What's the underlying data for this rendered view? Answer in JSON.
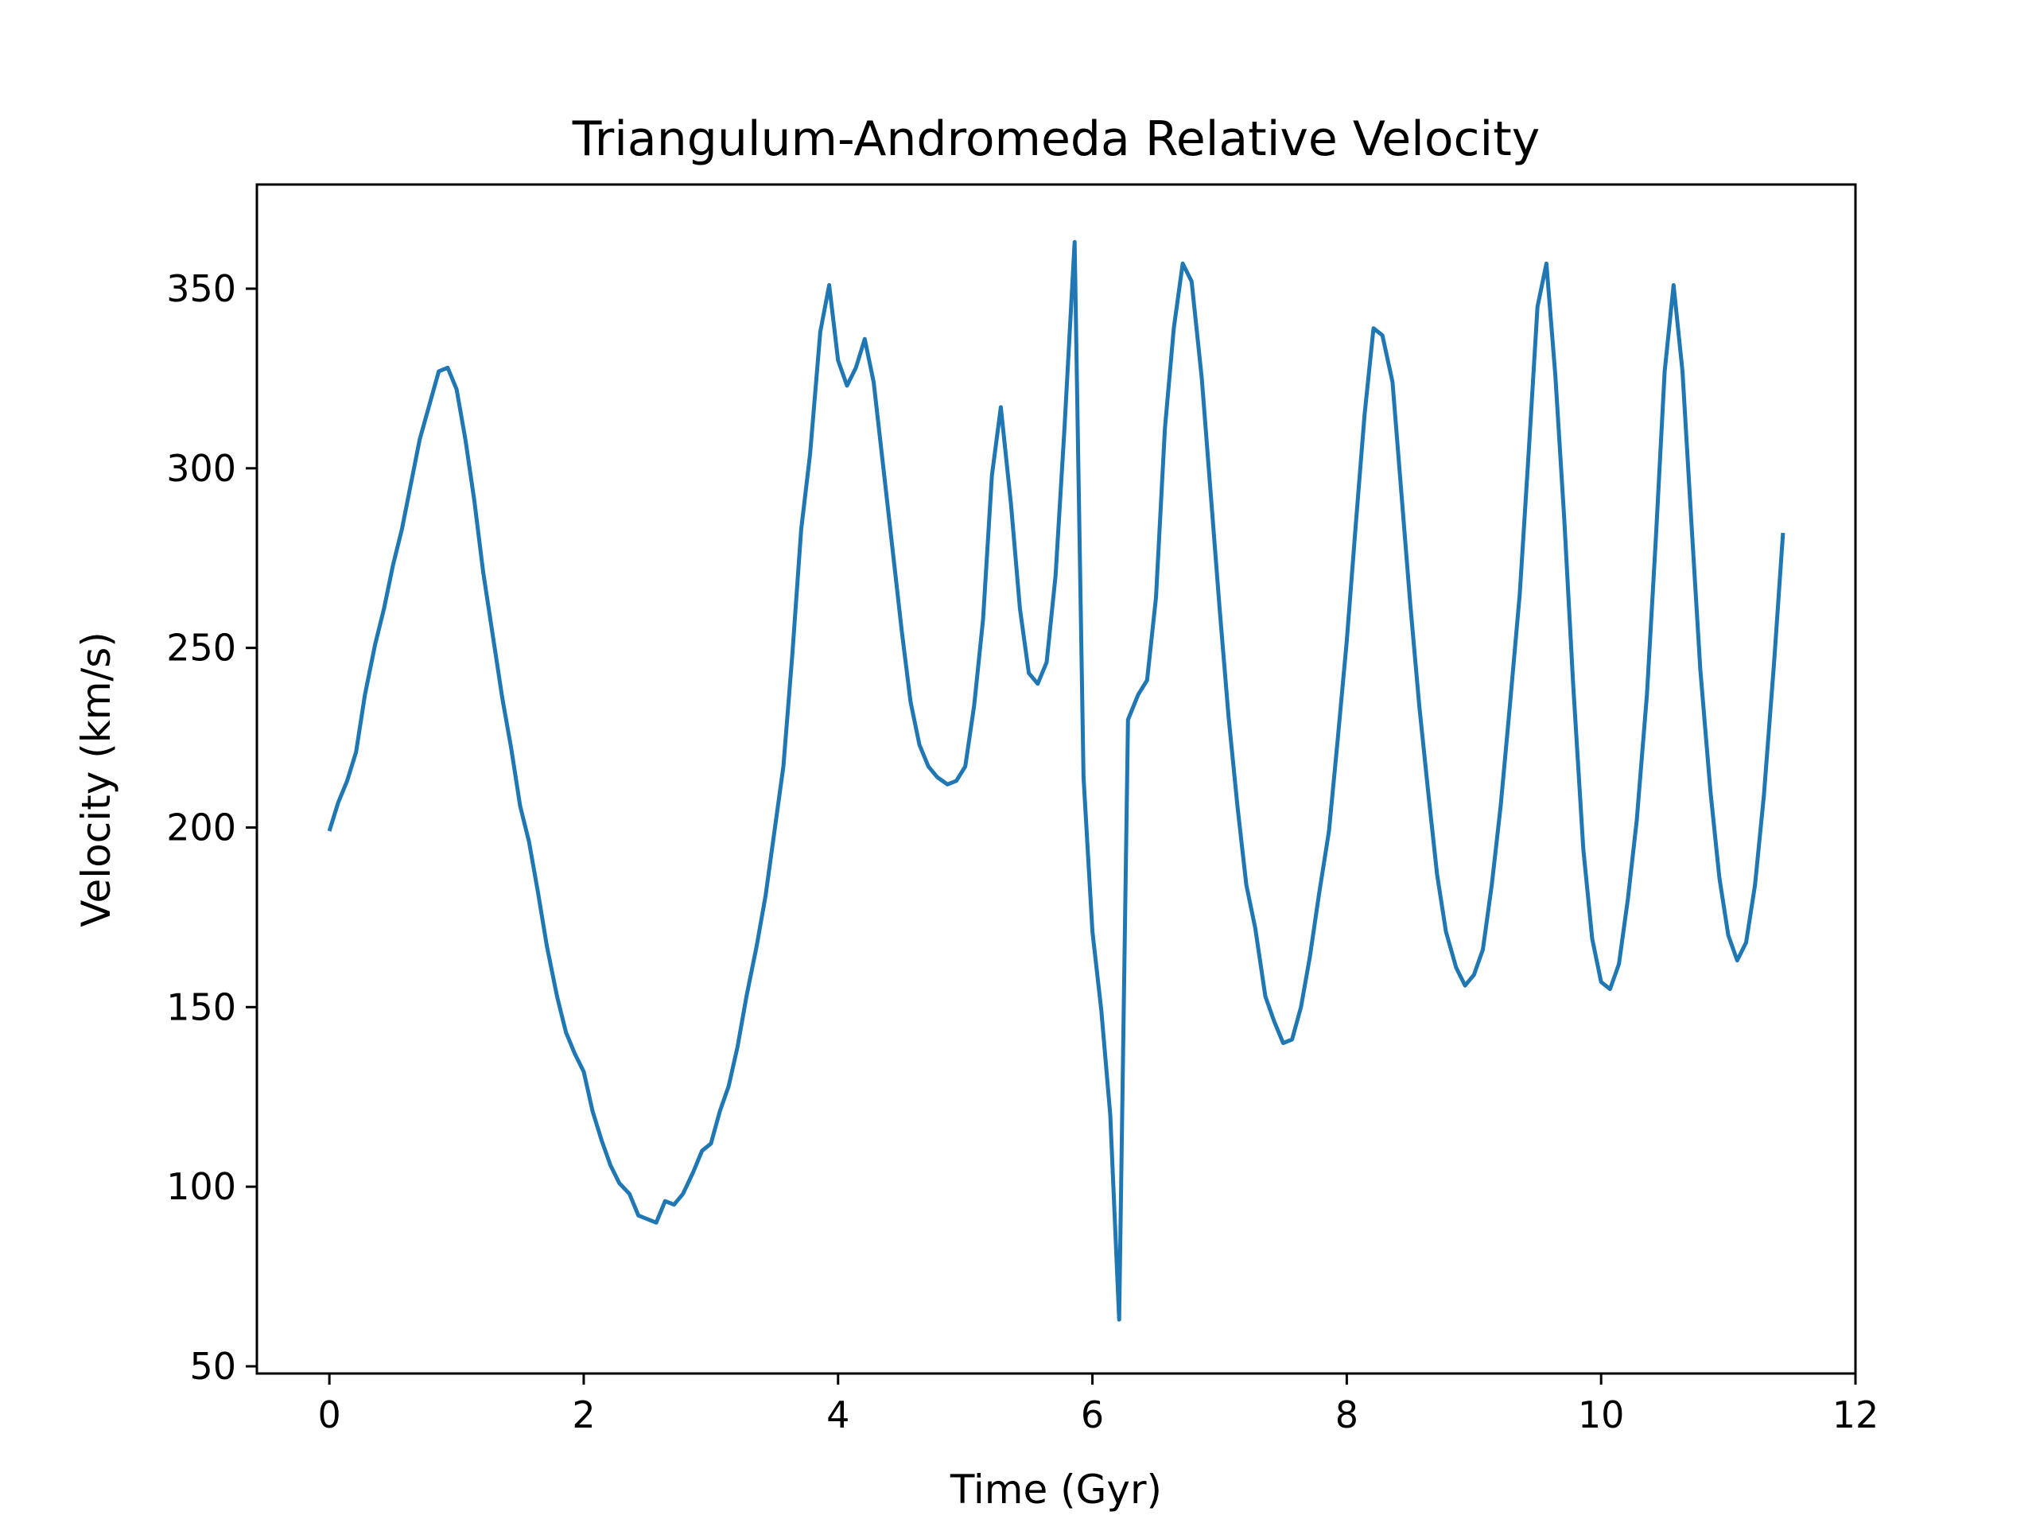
{
  "chart_data": {
    "type": "line",
    "title": "Triangulum-Andromeda Relative Velocity",
    "xlabel": "Time (Gyr)",
    "ylabel": "Velocity (km/s)",
    "xlim": [
      -0.57,
      12
    ],
    "ylim": [
      48,
      379
    ],
    "xticks": [
      0,
      2,
      4,
      6,
      8,
      10,
      12
    ],
    "yticks": [
      50,
      100,
      150,
      200,
      250,
      300,
      350
    ],
    "grid": false,
    "color": "#1f77b4",
    "series": [
      {
        "x": [
          0.0,
          0.07,
          0.14,
          0.21,
          0.28,
          0.36,
          0.43,
          0.5,
          0.57,
          0.71,
          0.86,
          0.93,
          1.0,
          1.07,
          1.14,
          1.21,
          1.36,
          1.43,
          1.5,
          1.57,
          1.64,
          1.71,
          1.79,
          1.86,
          1.93,
          2.0,
          2.07,
          2.14,
          2.21,
          2.28,
          2.36,
          2.43,
          2.5,
          2.57,
          2.64,
          2.71,
          2.78,
          2.86,
          2.93,
          3.0,
          3.07,
          3.14,
          3.21,
          3.28,
          3.36,
          3.43,
          3.5,
          3.57,
          3.64,
          3.71,
          3.78,
          3.86,
          3.93,
          4.0,
          4.07,
          4.14,
          4.21,
          4.28,
          4.36,
          4.43,
          4.5,
          4.57,
          4.64,
          4.71,
          4.78,
          4.86,
          4.93,
          5.0,
          5.07,
          5.14,
          5.21,
          5.28,
          5.36,
          5.43,
          5.5,
          5.57,
          5.64,
          5.71,
          5.78,
          5.86,
          5.93,
          6.0,
          6.07,
          6.14,
          6.21,
          6.28,
          6.36,
          6.43,
          6.5,
          6.57,
          6.64,
          6.71,
          6.78,
          6.86,
          6.93,
          7.0,
          7.07,
          7.14,
          7.21,
          7.28,
          7.36,
          7.43,
          7.5,
          7.57,
          7.64,
          7.71,
          7.78,
          7.86,
          7.93,
          8.0,
          8.07,
          8.14,
          8.21,
          8.28,
          8.36,
          8.43,
          8.5,
          8.57,
          8.64,
          8.71,
          8.78,
          8.86,
          8.93,
          9.0,
          9.07,
          9.14,
          9.21,
          9.28,
          9.36,
          9.43,
          9.5,
          9.57,
          9.64,
          9.71,
          9.78,
          9.86,
          9.93,
          10.0,
          10.07,
          10.14,
          10.21,
          10.28,
          10.36,
          10.43,
          10.5,
          10.57,
          10.64,
          10.71,
          10.78,
          10.86,
          10.93,
          11.0,
          11.07,
          11.14,
          11.21,
          11.28,
          11.36,
          11.43
        ],
        "values": [
          199,
          207,
          213,
          221,
          237,
          251,
          261,
          273,
          283,
          308,
          327,
          328,
          322,
          308,
          291,
          271,
          236,
          222,
          206,
          196,
          182,
          167,
          153,
          143,
          137,
          132,
          121,
          113,
          106,
          101,
          98,
          92,
          91,
          90,
          96,
          95,
          98,
          104,
          110,
          112,
          121,
          128,
          139,
          153,
          167,
          181,
          199,
          217,
          248,
          283,
          304,
          338,
          351,
          330,
          323,
          328,
          336,
          324,
          299,
          277,
          255,
          235,
          223,
          217,
          214,
          212,
          213,
          217,
          234,
          258,
          298,
          317,
          290,
          261,
          243,
          240,
          246,
          270,
          311,
          363,
          214,
          171,
          149,
          120,
          63,
          230,
          237,
          241,
          264,
          311,
          339,
          357,
          352,
          325,
          293,
          261,
          231,
          206,
          184,
          172,
          153,
          146,
          140,
          141,
          150,
          164,
          181,
          199,
          225,
          252,
          284,
          315,
          339,
          337,
          324,
          293,
          262,
          234,
          210,
          187,
          171,
          161,
          156,
          159,
          166,
          184,
          206,
          233,
          265,
          304,
          345,
          357,
          326,
          286,
          240,
          194,
          169,
          157,
          155,
          162,
          180,
          202,
          237,
          280,
          327,
          351,
          327,
          285,
          244,
          210,
          186,
          170,
          163,
          168,
          184,
          209,
          246,
          282
        ]
      }
    ]
  }
}
